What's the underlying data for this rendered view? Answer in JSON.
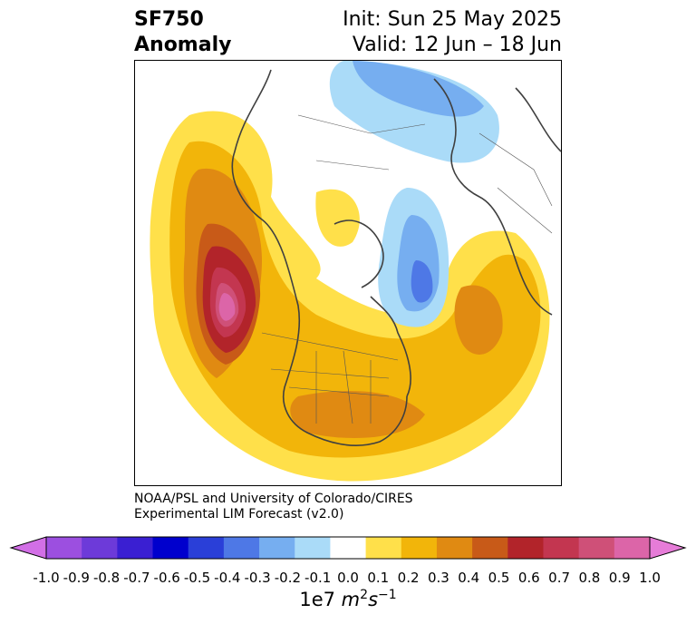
{
  "header": {
    "variable": "SF750",
    "field": "Anomaly",
    "init": "Init: Sun 25 May 2025",
    "valid": "Valid: 12 Jun – 18 Jun"
  },
  "credit": {
    "line1": "NOAA/PSL and University of Colorado/CIRES",
    "line2": "Experimental LIM Forecast (v2.0)"
  },
  "colorbar": {
    "colors": [
      "#d26fe6",
      "#9c4fe0",
      "#6d3ad9",
      "#3a1fd2",
      "#0000cd",
      "#2a3fd8",
      "#4e78e6",
      "#76aef0",
      "#aadbf8",
      "#ffffff",
      "#ffe04a",
      "#f2b50a",
      "#e08a12",
      "#c85a18",
      "#b2242a",
      "#c33650",
      "#cf5078",
      "#dc65a8",
      "#e67cd8"
    ],
    "ticks": [
      "-1.0",
      "-0.9",
      "-0.8",
      "-0.7",
      "-0.6",
      "-0.5",
      "-0.4",
      "-0.3",
      "-0.2",
      "-0.1",
      "0.0",
      "0.1",
      "0.2",
      "0.3",
      "0.4",
      "0.5",
      "0.6",
      "0.7",
      "0.8",
      "0.9",
      "1.0"
    ],
    "units_prefix": "1e7 ",
    "units_m": "m",
    "units_m_exp": "2",
    "units_s": "s",
    "units_s_exp": "−1"
  }
}
